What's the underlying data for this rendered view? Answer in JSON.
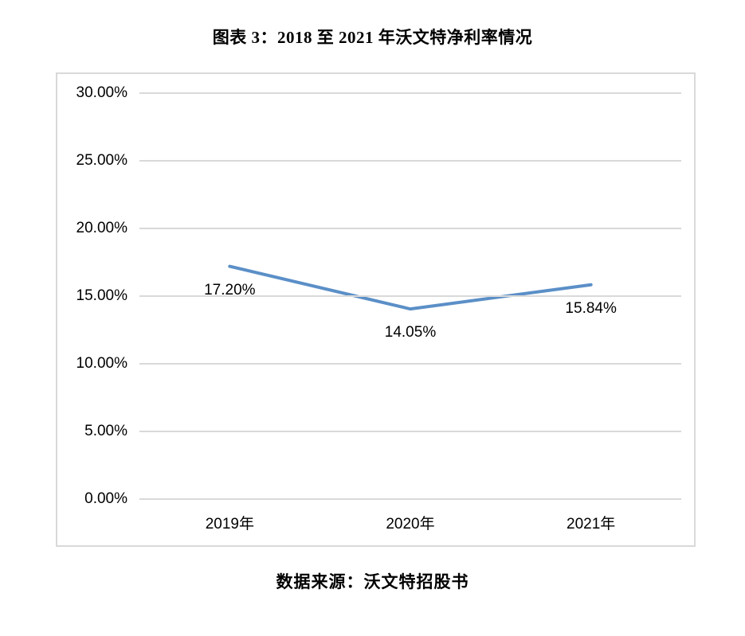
{
  "title": "图表 3：2018 至 2021 年沃文特净利率情况",
  "source": "数据来源：沃文特招股书",
  "chart_data": {
    "type": "line",
    "categories": [
      "2019年",
      "2020年",
      "2021年"
    ],
    "values": [
      17.2,
      14.05,
      15.84
    ],
    "data_labels": [
      "17.20%",
      "14.05%",
      "15.84%"
    ],
    "y_ticks": [
      "30.00%",
      "25.00%",
      "20.00%",
      "15.00%",
      "10.00%",
      "5.00%",
      "0.00%"
    ],
    "y_tick_values": [
      30,
      25,
      20,
      15,
      10,
      5,
      0
    ],
    "ylim": [
      0,
      30
    ],
    "grid": true,
    "legend": "none",
    "title": "图表 3：2018 至 2021 年沃文特净利率情况",
    "xlabel": "",
    "ylabel": "",
    "line_color": "#5b8fc7",
    "gridline_color": "#d9d9d9",
    "text_color": "#000000"
  }
}
